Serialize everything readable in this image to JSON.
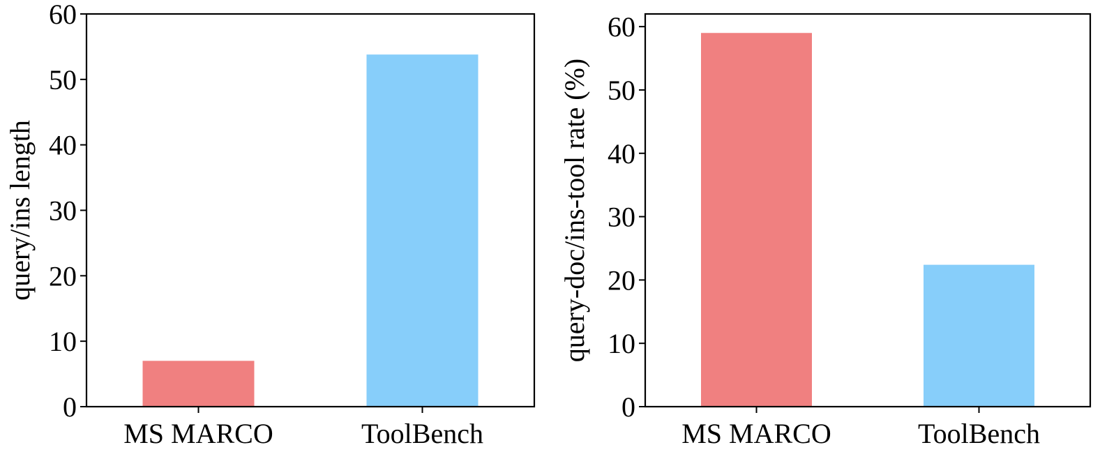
{
  "chart_data": [
    {
      "type": "bar",
      "categories": [
        "MS MARCO",
        "ToolBench"
      ],
      "values": [
        7.0,
        53.8
      ],
      "colors": [
        "#F08080",
        "#87CEFA"
      ],
      "xlabel": "",
      "ylabel": "query/ins length",
      "ylim": [
        0,
        60
      ],
      "yticks": [
        0,
        10,
        20,
        30,
        40,
        50,
        60
      ],
      "grid": false,
      "legend": "none"
    },
    {
      "type": "bar",
      "categories": [
        "MS MARCO",
        "ToolBench"
      ],
      "values": [
        59.0,
        22.4
      ],
      "colors": [
        "#F08080",
        "#87CEFA"
      ],
      "xlabel": "",
      "ylabel": "query-doc/ins-tool rate (%)",
      "ylim": [
        0,
        62
      ],
      "yticks": [
        0,
        10,
        20,
        30,
        40,
        50,
        60
      ],
      "grid": false,
      "legend": "none"
    }
  ]
}
